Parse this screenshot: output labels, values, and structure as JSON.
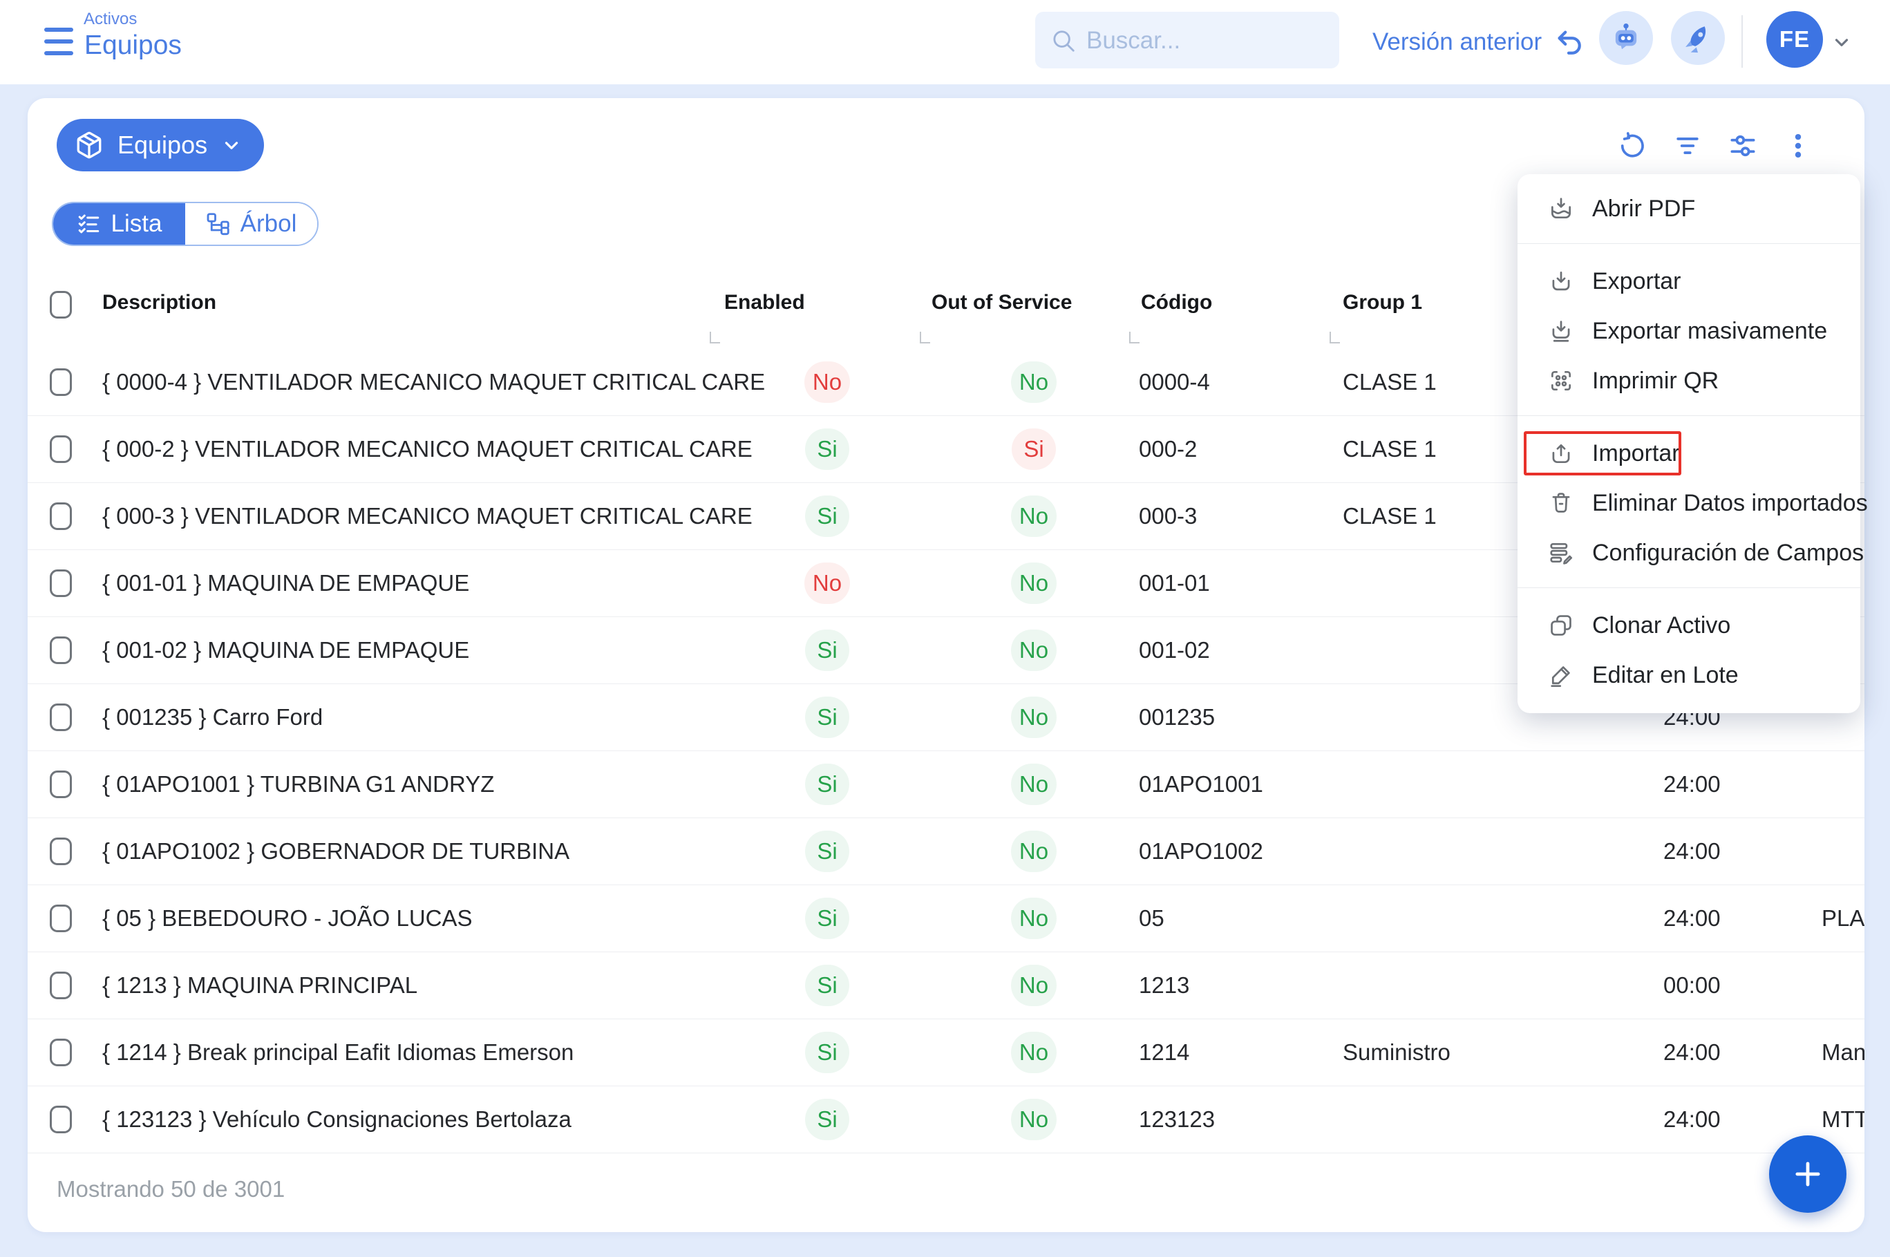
{
  "topbar": {
    "breadcrumb": {
      "section": "Activos",
      "page": "Equipos"
    },
    "search": {
      "placeholder": "Buscar..."
    },
    "version_link": "Versión anterior",
    "action_icons": [
      "ai-assistant",
      "whats-new-rocket"
    ],
    "avatar": {
      "initials": "FE"
    }
  },
  "panel": {
    "entity_button": {
      "label": "Equipos",
      "icon": "package"
    },
    "toolbar_icons": [
      "refresh",
      "filter",
      "display-settings",
      "more-options"
    ],
    "view_toggle": {
      "list_label": "Lista",
      "tree_label": "Árbol",
      "active": "Lista"
    }
  },
  "table": {
    "columns": {
      "description": "Description",
      "enabled": "Enabled",
      "out_of_service": "Out of Service",
      "codigo": "Código",
      "group1": "Group 1"
    },
    "rows": [
      {
        "description": "{ 0000-4 } VENTILADOR MECANICO MAQUET CRITICAL CARE",
        "enabled": "No",
        "enabled_state": "neg",
        "out_of_service": "No",
        "oos_state": "pos",
        "codigo": "0000-4",
        "group1": "CLASE 1",
        "time": "",
        "extra": ""
      },
      {
        "description": "{ 000-2 } VENTILADOR MECANICO MAQUET CRITICAL CARE",
        "enabled": "Si",
        "enabled_state": "pos",
        "out_of_service": "Si",
        "oos_state": "neg",
        "codigo": "000-2",
        "group1": "CLASE 1",
        "time": "",
        "extra": ""
      },
      {
        "description": "{ 000-3 } VENTILADOR MECANICO MAQUET CRITICAL CARE",
        "enabled": "Si",
        "enabled_state": "pos",
        "out_of_service": "No",
        "oos_state": "pos",
        "codigo": "000-3",
        "group1": "CLASE 1",
        "time": "",
        "extra": ""
      },
      {
        "description": "{ 001-01 } MAQUINA DE EMPAQUE",
        "enabled": "No",
        "enabled_state": "neg",
        "out_of_service": "No",
        "oos_state": "pos",
        "codigo": "001-01",
        "group1": "",
        "time": "",
        "extra": ""
      },
      {
        "description": "{ 001-02 } MAQUINA DE EMPAQUE",
        "enabled": "Si",
        "enabled_state": "pos",
        "out_of_service": "No",
        "oos_state": "pos",
        "codigo": "001-02",
        "group1": "",
        "time": "",
        "extra": ""
      },
      {
        "description": "{ 001235 } Carro Ford",
        "enabled": "Si",
        "enabled_state": "pos",
        "out_of_service": "No",
        "oos_state": "pos",
        "codigo": "001235",
        "group1": "",
        "time": "24:00",
        "extra": ""
      },
      {
        "description": "{ 01APO1001 } TURBINA G1 ANDRYZ",
        "enabled": "Si",
        "enabled_state": "pos",
        "out_of_service": "No",
        "oos_state": "pos",
        "codigo": "01APO1001",
        "group1": "",
        "time": "24:00",
        "extra": ""
      },
      {
        "description": "{ 01APO1002 } GOBERNADOR DE TURBINA",
        "enabled": "Si",
        "enabled_state": "pos",
        "out_of_service": "No",
        "oos_state": "pos",
        "codigo": "01APO1002",
        "group1": "",
        "time": "24:00",
        "extra": ""
      },
      {
        "description": "{ 05 } BEBEDOURO - JOÃO LUCAS",
        "enabled": "Si",
        "enabled_state": "pos",
        "out_of_service": "No",
        "oos_state": "pos",
        "codigo": "05",
        "group1": "",
        "time": "24:00",
        "extra": "PLA"
      },
      {
        "description": "{ 1213 } MAQUINA PRINCIPAL",
        "enabled": "Si",
        "enabled_state": "pos",
        "out_of_service": "No",
        "oos_state": "pos",
        "codigo": "1213",
        "group1": "",
        "time": "00:00",
        "extra": ""
      },
      {
        "description": "{ 1214 } Break principal Eafit Idiomas Emerson",
        "enabled": "Si",
        "enabled_state": "pos",
        "out_of_service": "No",
        "oos_state": "pos",
        "codigo": "1214",
        "group1": "Suministro",
        "time": "24:00",
        "extra": "Man"
      },
      {
        "description": "{ 123123 } Vehículo Consignaciones Bertolaza",
        "enabled": "Si",
        "enabled_state": "pos",
        "out_of_service": "No",
        "oos_state": "pos",
        "codigo": "123123",
        "group1": "",
        "time": "24:00",
        "extra": "MTT"
      }
    ],
    "footer": "Mostrando 50 de 3001"
  },
  "menu": {
    "groups": [
      [
        {
          "id": "abrir-pdf",
          "label": "Abrir PDF",
          "icon": "open-pdf"
        }
      ],
      [
        {
          "id": "exportar",
          "label": "Exportar",
          "icon": "export"
        },
        {
          "id": "exportar-masivamente",
          "label": "Exportar masivamente",
          "icon": "export-bulk"
        },
        {
          "id": "imprimir-qr",
          "label": "Imprimir QR",
          "icon": "qr"
        }
      ],
      [
        {
          "id": "importar",
          "label": "Importar",
          "icon": "import",
          "highlighted": true
        },
        {
          "id": "eliminar-datos-importados",
          "label": "Eliminar Datos importados",
          "icon": "trash"
        },
        {
          "id": "configuracion-de-campos",
          "label": "Configuración de Campos",
          "icon": "fields"
        }
      ],
      [
        {
          "id": "clonar-activo",
          "label": "Clonar Activo",
          "icon": "clone"
        },
        {
          "id": "editar-en-lote",
          "label": "Editar en Lote",
          "icon": "edit"
        }
      ]
    ]
  },
  "fab": {
    "label": "+"
  },
  "colors": {
    "accent": "#4478e4",
    "fab": "#1a63da",
    "page_bg": "#e2ebfb",
    "positive": "#27a24b",
    "negative": "#e23d3d",
    "highlight_frame": "#e8312a"
  }
}
